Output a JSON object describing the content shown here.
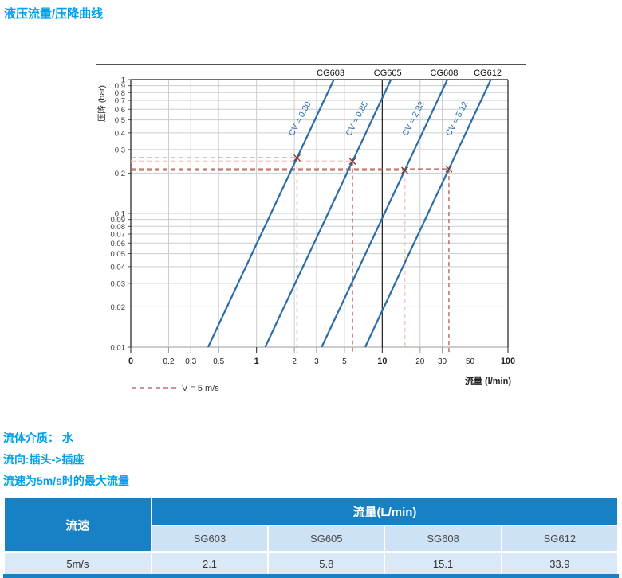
{
  "page": {
    "title": "液压流量/压降曲线",
    "info_lines": {
      "medium": "流体介质： 水",
      "direction": "流向:插头->插座",
      "max_flow_note": "流速为5m/s时的最大流量"
    },
    "accent_color": "#00a0e9",
    "table_header_color": "#1880c4"
  },
  "chart_data": {
    "type": "line",
    "title": "",
    "x_axis": {
      "label": "流量 (l/min)",
      "scale": "log",
      "min": 0.1,
      "max": 100,
      "ticks": [
        {
          "v": 0.1,
          "t": "0",
          "major": true
        },
        {
          "v": 0.2,
          "t": "0.2"
        },
        {
          "v": 0.3,
          "t": "0.3"
        },
        {
          "v": 0.5,
          "t": "0.5"
        },
        {
          "v": 1,
          "t": "1",
          "major": true
        },
        {
          "v": 2,
          "t": "2"
        },
        {
          "v": 3,
          "t": "3"
        },
        {
          "v": 5,
          "t": "5"
        },
        {
          "v": 10,
          "t": "10",
          "major": true
        },
        {
          "v": 20,
          "t": "20"
        },
        {
          "v": 30,
          "t": "30"
        },
        {
          "v": 50,
          "t": "50"
        },
        {
          "v": 100,
          "t": "100",
          "major": true
        }
      ]
    },
    "y_axis": {
      "label": "压降 (bar)",
      "scale": "log",
      "min": 0.01,
      "max": 1,
      "ticks": [
        {
          "v": 1,
          "t": "1"
        },
        {
          "v": 0.9,
          "t": "0.9"
        },
        {
          "v": 0.8,
          "t": "0.8"
        },
        {
          "v": 0.7,
          "t": "0.7"
        },
        {
          "v": 0.6,
          "t": "0.6"
        },
        {
          "v": 0.5,
          "t": "0.5"
        },
        {
          "v": 0.4,
          "t": "0.4"
        },
        {
          "v": 0.3,
          "t": "0.3"
        },
        {
          "v": 0.2,
          "t": "0.2"
        },
        {
          "v": 0.1,
          "t": "0.1"
        },
        {
          "v": 0.09,
          "t": "0.09"
        },
        {
          "v": 0.08,
          "t": "0.08"
        },
        {
          "v": 0.07,
          "t": "0.07"
        },
        {
          "v": 0.06,
          "t": "0.06"
        },
        {
          "v": 0.05,
          "t": "0.05"
        },
        {
          "v": 0.04,
          "t": "0.04"
        },
        {
          "v": 0.03,
          "t": "0.03"
        },
        {
          "v": 0.02,
          "t": "0.02"
        },
        {
          "v": 0.01,
          "t": "0.01"
        }
      ]
    },
    "series": [
      {
        "model": "CG603",
        "cv": 0.3,
        "cv_label": "CV = 0.30",
        "marker_flow": 2.1,
        "marker_dp": 0.26,
        "h_dash": "dark",
        "v_dash": "dark"
      },
      {
        "model": "CG605",
        "cv": 0.85,
        "cv_label": "CV = 0.85",
        "marker_flow": 5.8,
        "marker_dp": 0.245,
        "h_dash": "light",
        "v_dash": "dark"
      },
      {
        "model": "CG608",
        "cv": 2.33,
        "cv_label": "CV = 2.33",
        "marker_flow": 15.1,
        "marker_dp": 0.21,
        "h_dash": "dark",
        "v_dash": "light"
      },
      {
        "model": "CG612",
        "cv": 5.12,
        "cv_label": "CV = 5.12",
        "marker_flow": 33.9,
        "marker_dp": 0.215,
        "h_dash": "dark",
        "v_dash": "dark"
      }
    ],
    "line_slope_loglog": 2,
    "legend": {
      "label": "V = 5 m/s"
    },
    "grid": true,
    "colors": {
      "curve": "#2a6ca8",
      "grid": "#c9cdd1",
      "axis_dark": "#1a1a1a",
      "tick_text": "#3a3a3a",
      "dash_dark": "#b0544c",
      "dash_light": "#f4c9c0",
      "marker": "#7d3b36"
    }
  },
  "table": {
    "col1_header": "流速",
    "group_header": "流量(L/min)",
    "model_headers": [
      "SG603",
      "SG605",
      "SG608",
      "SG612"
    ],
    "rows": [
      {
        "speed": "5m/s",
        "values": [
          "2.1",
          "5.8",
          "15.1",
          "33.9"
        ]
      }
    ]
  }
}
